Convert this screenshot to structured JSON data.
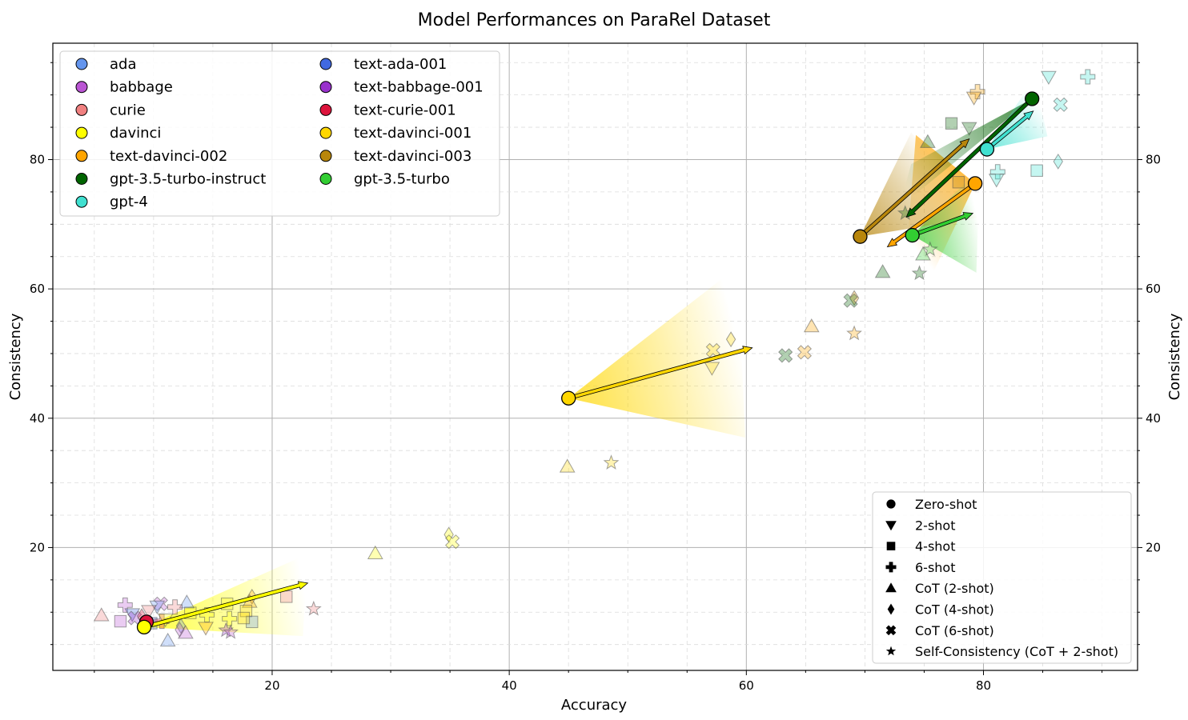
{
  "chart_data": {
    "type": "scatter",
    "title": "Model Performances on ParaRel Dataset",
    "xlabel": "Accuracy",
    "ylabel": "Consistency",
    "ylabel_right": "Consistency",
    "xlim": [
      1.5,
      93
    ],
    "ylim": [
      1,
      98
    ],
    "x_ticks": [
      20,
      40,
      60,
      80
    ],
    "y_ticks": [
      20,
      40,
      60,
      80
    ],
    "grid": true,
    "model_legend_placement": "top-left",
    "setting_legend_placement": "bottom-right",
    "models": [
      {
        "name": "ada",
        "color": "#6495ED"
      },
      {
        "name": "babbage",
        "color": "#BA55D3"
      },
      {
        "name": "curie",
        "color": "#F08080"
      },
      {
        "name": "davinci",
        "color": "#FFFF00"
      },
      {
        "name": "text-davinci-002",
        "color": "#FFA500"
      },
      {
        "name": "gpt-3.5-turbo-instruct",
        "color": "#006400"
      },
      {
        "name": "gpt-4",
        "color": "#40E0D0"
      },
      {
        "name": "text-ada-001",
        "color": "#4169E1"
      },
      {
        "name": "text-babbage-001",
        "color": "#9932CC"
      },
      {
        "name": "text-curie-001",
        "color": "#DC143C"
      },
      {
        "name": "text-davinci-001",
        "color": "#FFD700"
      },
      {
        "name": "text-davinci-003",
        "color": "#B8860B"
      },
      {
        "name": "gpt-3.5-turbo",
        "color": "#32CD32"
      }
    ],
    "settings": [
      {
        "name": "Zero-shot",
        "marker": "circle"
      },
      {
        "name": "2-shot",
        "marker": "triangle-down"
      },
      {
        "name": "4-shot",
        "marker": "square"
      },
      {
        "name": "6-shot",
        "marker": "plus"
      },
      {
        "name": "CoT (2-shot)",
        "marker": "triangle-up"
      },
      {
        "name": "CoT (4-shot)",
        "marker": "diamond"
      },
      {
        "name": "CoT (6-shot)",
        "marker": "x"
      },
      {
        "name": "Self-Consistency (CoT + 2-shot)",
        "marker": "star"
      }
    ],
    "zero_shot_points": [
      {
        "model": "text-davinci-001",
        "x": 45.0,
        "y": 43.1
      },
      {
        "model": "text-davinci-003",
        "x": 69.6,
        "y": 68.1
      },
      {
        "model": "gpt-3.5-turbo",
        "x": 74.0,
        "y": 68.3
      },
      {
        "model": "text-davinci-002",
        "x": 79.3,
        "y": 76.3
      },
      {
        "model": "gpt-4",
        "x": 80.3,
        "y": 81.6
      },
      {
        "model": "gpt-3.5-turbo-instruct",
        "x": 84.1,
        "y": 89.4
      },
      {
        "model": "text-curie-001",
        "x": 9.4,
        "y": 8.5
      },
      {
        "model": "davinci",
        "x": 9.2,
        "y": 7.7
      }
    ],
    "shift_arrows": [
      {
        "model": "text-davinci-001",
        "from": [
          45.0,
          43.1
        ],
        "to": [
          60.5,
          50.9
        ]
      },
      {
        "model": "davinci",
        "from": [
          9.2,
          7.7
        ],
        "to": [
          23.0,
          14.5
        ]
      },
      {
        "model": "text-davinci-003",
        "from": [
          69.6,
          68.1
        ],
        "to": [
          78.8,
          83.2
        ]
      },
      {
        "model": "gpt-3.5-turbo-instruct",
        "from": [
          84.1,
          89.4
        ],
        "to": [
          73.5,
          71.1
        ]
      },
      {
        "model": "gpt-4",
        "from": [
          80.3,
          81.6
        ],
        "to": [
          84.2,
          87.5
        ]
      },
      {
        "model": "gpt-3.5-turbo",
        "from": [
          74.0,
          68.3
        ],
        "to": [
          79.1,
          71.7
        ]
      },
      {
        "model": "text-davinci-002",
        "from": [
          79.3,
          76.3
        ],
        "to": [
          71.9,
          66.5
        ]
      }
    ],
    "prompted_points": [
      {
        "model": "text-davinci-002",
        "setting": "6-shot",
        "x": 79.5,
        "y": 90.5
      },
      {
        "model": "text-davinci-002",
        "setting": "2-shot",
        "x": 79.2,
        "y": 89.6
      },
      {
        "model": "gpt-3.5-turbo-instruct",
        "setting": "4-shot",
        "x": 77.3,
        "y": 85.6
      },
      {
        "model": "gpt-3.5-turbo-instruct",
        "setting": "2-shot",
        "x": 78.8,
        "y": 84.9
      },
      {
        "model": "gpt-3.5-turbo-instruct",
        "setting": "CoT (2-shot)",
        "x": 75.3,
        "y": 82.7
      },
      {
        "model": "gpt-4",
        "setting": "2-shot",
        "x": 85.5,
        "y": 92.8
      },
      {
        "model": "gpt-4",
        "setting": "6-shot",
        "x": 88.8,
        "y": 92.8
      },
      {
        "model": "gpt-4",
        "setting": "CoT (6-shot)",
        "x": 86.5,
        "y": 88.5
      },
      {
        "model": "gpt-4",
        "setting": "CoT (4-shot)",
        "x": 86.3,
        "y": 79.7
      },
      {
        "model": "gpt-4",
        "setting": "4-shot",
        "x": 84.5,
        "y": 78.3
      },
      {
        "model": "gpt-4",
        "setting": "6-shot",
        "x": 81.2,
        "y": 78.1
      },
      {
        "model": "gpt-4",
        "setting": "2-shot",
        "x": 81.1,
        "y": 76.9
      },
      {
        "model": "text-davinci-003",
        "setting": "4-shot",
        "x": 77.9,
        "y": 76.5
      },
      {
        "model": "gpt-3.5-turbo-instruct",
        "setting": "Self-Consistency (CoT + 2-shot)",
        "x": 73.4,
        "y": 71.7
      },
      {
        "model": "gpt-3.5-turbo",
        "setting": "CoT (2-shot)",
        "x": 74.9,
        "y": 65.3
      },
      {
        "model": "gpt-3.5-turbo",
        "setting": "Self-Consistency (CoT + 2-shot)",
        "x": 75.5,
        "y": 66.1
      },
      {
        "model": "gpt-3.5-turbo-instruct",
        "setting": "CoT (2-shot)",
        "x": 71.5,
        "y": 62.6
      },
      {
        "model": "gpt-3.5-turbo-instruct",
        "setting": "Self-Consistency (CoT + 2-shot)",
        "x": 74.6,
        "y": 62.4
      },
      {
        "model": "text-davinci-002",
        "setting": "CoT (4-shot)",
        "x": 69.1,
        "y": 58.6
      },
      {
        "model": "gpt-3.5-turbo-instruct",
        "setting": "CoT (6-shot)",
        "x": 68.8,
        "y": 58.2
      },
      {
        "model": "text-davinci-002",
        "setting": "CoT (2-shot)",
        "x": 65.5,
        "y": 54.2
      },
      {
        "model": "text-davinci-002",
        "setting": "Self-Consistency (CoT + 2-shot)",
        "x": 69.1,
        "y": 53.1
      },
      {
        "model": "text-davinci-002",
        "setting": "CoT (6-shot)",
        "x": 64.9,
        "y": 50.2
      },
      {
        "model": "gpt-3.5-turbo-instruct",
        "setting": "CoT (6-shot)",
        "x": 63.3,
        "y": 49.7
      },
      {
        "model": "text-davinci-001",
        "setting": "CoT (4-shot)",
        "x": 58.7,
        "y": 52.2
      },
      {
        "model": "text-davinci-001",
        "setting": "CoT (6-shot)",
        "x": 57.2,
        "y": 50.5
      },
      {
        "model": "text-davinci-001",
        "setting": "2-shot",
        "x": 57.1,
        "y": 47.8
      },
      {
        "model": "text-davinci-001",
        "setting": "Self-Consistency (CoT + 2-shot)",
        "x": 48.6,
        "y": 33.1
      },
      {
        "model": "text-davinci-001",
        "setting": "CoT (2-shot)",
        "x": 44.9,
        "y": 32.5
      },
      {
        "model": "davinci",
        "setting": "CoT (2-shot)",
        "x": 28.7,
        "y": 19.1
      },
      {
        "model": "davinci",
        "setting": "CoT (4-shot)",
        "x": 34.9,
        "y": 22.0
      },
      {
        "model": "davinci",
        "setting": "CoT (6-shot)",
        "x": 35.2,
        "y": 20.9
      },
      {
        "model": "curie",
        "setting": "Self-Consistency (CoT + 2-shot)",
        "x": 23.5,
        "y": 10.5
      },
      {
        "model": "curie",
        "setting": "4-shot",
        "x": 21.2,
        "y": 12.4
      },
      {
        "model": "text-davinci-002",
        "setting": "CoT (4-shot)",
        "x": 18.3,
        "y": 12.4
      },
      {
        "model": "text-davinci-002",
        "setting": "CoT (2-shot)",
        "x": 18.1,
        "y": 11.6
      },
      {
        "model": "text-davinci-001",
        "setting": "4-shot",
        "x": 17.8,
        "y": 10.2
      },
      {
        "model": "ada",
        "setting": "4-shot",
        "x": 18.3,
        "y": 8.5
      },
      {
        "model": "text-davinci-001",
        "setting": "4-shot",
        "x": 17.6,
        "y": 9.1
      },
      {
        "model": "davinci",
        "setting": "4-shot",
        "x": 16.2,
        "y": 11.3
      },
      {
        "model": "davinci",
        "setting": "6-shot",
        "x": 16.4,
        "y": 9.0
      },
      {
        "model": "text-babbage-001",
        "setting": "Self-Consistency (CoT + 2-shot)",
        "x": 16.1,
        "y": 7.2
      },
      {
        "model": "babbage",
        "setting": "Self-Consistency (CoT + 2-shot)",
        "x": 16.5,
        "y": 6.9
      },
      {
        "model": "davinci",
        "setting": "6-shot",
        "x": 14.5,
        "y": 9.6
      },
      {
        "model": "text-davinci-002",
        "setting": "2-shot",
        "x": 14.4,
        "y": 7.6
      },
      {
        "model": "davinci",
        "setting": "4-shot",
        "x": 13.1,
        "y": 9.9
      },
      {
        "model": "ada",
        "setting": "CoT (2-shot)",
        "x": 12.8,
        "y": 11.5
      },
      {
        "model": "babbage",
        "setting": "CoT (2-shot)",
        "x": 12.7,
        "y": 6.8
      },
      {
        "model": "ada",
        "setting": "CoT (4-shot)",
        "x": 12.3,
        "y": 7.9
      },
      {
        "model": "babbage",
        "setting": "CoT (4-shot)",
        "x": 12.2,
        "y": 7.3
      },
      {
        "model": "curie",
        "setting": "6-shot",
        "x": 11.8,
        "y": 10.8
      },
      {
        "model": "babbage",
        "setting": "CoT (6-shot)",
        "x": 10.6,
        "y": 11.3
      },
      {
        "model": "ada",
        "setting": "2-shot",
        "x": 10.3,
        "y": 10.9
      },
      {
        "model": "ada",
        "setting": "CoT (2-shot)",
        "x": 11.2,
        "y": 5.6
      },
      {
        "model": "curie",
        "setting": "2-shot",
        "x": 9.6,
        "y": 10.2
      },
      {
        "model": "babbage",
        "setting": "6-shot",
        "x": 7.6,
        "y": 11.1
      },
      {
        "model": "text-ada-001",
        "setting": "2-shot",
        "x": 8.2,
        "y": 9.7
      },
      {
        "model": "text-babbage-001",
        "setting": "CoT (6-shot)",
        "x": 8.4,
        "y": 9.1
      },
      {
        "model": "text-curie-001",
        "setting": "CoT (4-shot)",
        "x": 9.0,
        "y": 9.4
      },
      {
        "model": "babbage",
        "setting": "4-shot",
        "x": 7.2,
        "y": 8.6
      },
      {
        "model": "curie",
        "setting": "CoT (2-shot)",
        "x": 5.6,
        "y": 9.5
      },
      {
        "model": "text-ada-001",
        "setting": "4-shot",
        "x": 9.8,
        "y": 8.3
      },
      {
        "model": "text-curie-001",
        "setting": "6-shot",
        "x": 10.7,
        "y": 8.6
      },
      {
        "model": "davinci",
        "setting": "2-shot",
        "x": 11.0,
        "y": 8.9
      }
    ],
    "shading_fans": [
      {
        "model": "text-davinci-001",
        "apex": [
          45.0,
          43.1
        ],
        "far": [
          [
            59.3,
            63.5
          ],
          [
            59.9,
            37.0
          ]
        ]
      },
      {
        "model": "davinci",
        "apex": [
          9.2,
          7.7
        ],
        "far": [
          [
            23.0,
            19.0
          ],
          [
            22.6,
            6.3
          ]
        ]
      },
      {
        "model": "text-davinci-002",
        "apex": [
          79.3,
          76.3
        ],
        "far": [
          [
            74.3,
            83.8
          ],
          [
            72.9,
            51.4
          ]
        ]
      },
      {
        "model": "gpt-3.5-turbo",
        "apex": [
          74.0,
          68.3
        ],
        "far": [
          [
            79.7,
            78.6
          ],
          [
            79.4,
            62.5
          ]
        ]
      },
      {
        "model": "text-davinci-003",
        "apex": [
          69.6,
          68.1
        ],
        "far": [
          [
            73.9,
            84.2
          ],
          [
            80.1,
            71.2
          ]
        ]
      },
      {
        "model": "gpt-3.5-turbo-instruct",
        "apex": [
          84.1,
          89.4
        ],
        "far": [
          [
            73.9,
            79.3
          ],
          [
            72.9,
            72.6
          ]
        ]
      },
      {
        "model": "gpt-4",
        "apex": [
          80.3,
          81.6
        ],
        "far": [
          [
            84.3,
            92.6
          ],
          [
            85.4,
            83.6
          ]
        ]
      }
    ]
  }
}
